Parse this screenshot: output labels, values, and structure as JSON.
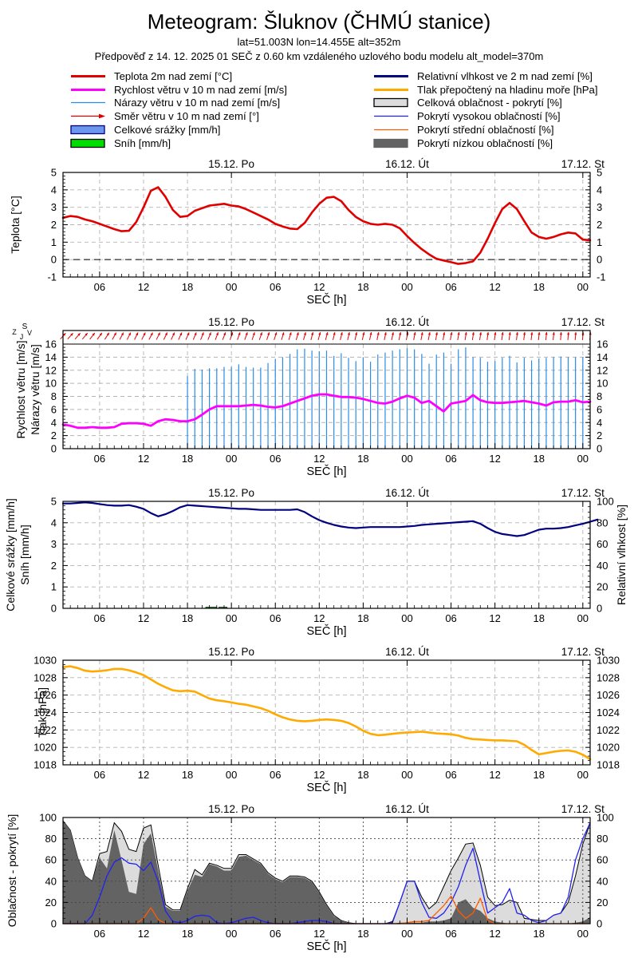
{
  "header": {
    "title": "Meteogram: Šluknov (ČHMÚ stanice)",
    "subtitle1": "lat=51.003N lon=14.455E alt=352m",
    "subtitle2": "Předpověď z 14. 12. 2025 01 SEČ z 0.60 km vzdáleného uzlového bodu modelu alt_model=370m"
  },
  "legend": {
    "left": [
      {
        "label": "Teplota 2m nad zemí [°C]",
        "swatch": "line",
        "color": "#e00000",
        "width": 3
      },
      {
        "label": "Rychlost větru v 10 m nad zemí [m/s]",
        "swatch": "line",
        "color": "#ff00ff",
        "width": 3
      },
      {
        "label": "Nárazy větru v 10 m nad zemí [m/s]",
        "swatch": "line",
        "color": "#2a8ce8",
        "width": 1.3
      },
      {
        "label": "Směr větru v 10 m nad zemí [°]",
        "swatch": "arrow",
        "color": "#e00000",
        "width": 1.3
      },
      {
        "label": "Celkové srážky [mm/h]",
        "swatch": "box",
        "color": "#6d96ee",
        "border": "#000080"
      },
      {
        "label": "Sníh [mm/h]",
        "swatch": "box",
        "color": "#00dd00",
        "border": "#000000"
      }
    ],
    "right": [
      {
        "label": "Relativní vlhkost ve 2 m nad zemí [%]",
        "swatch": "line",
        "color": "#000080",
        "width": 3
      },
      {
        "label": "Tlak přepočtený na hladinu moře [hPa]",
        "swatch": "line",
        "color": "#ffaa00",
        "width": 3
      },
      {
        "label": "Celková oblačnost - pokrytí [%]",
        "swatch": "box",
        "color": "#dcdcdc",
        "border": "#000000"
      },
      {
        "label": "Pokrytí vysokou oblačností [%]",
        "swatch": "line",
        "color": "#2222ee",
        "width": 1.3
      },
      {
        "label": "Pokrytí střední oblačností [%]",
        "swatch": "line",
        "color": "#ff5c00",
        "width": 1.3
      },
      {
        "label": "Pokrytí nízkou oblačností [%]",
        "swatch": "box",
        "color": "#636363",
        "border": "#636363"
      }
    ]
  },
  "axis": {
    "xlabel": "SEČ [h]",
    "hours_span": 72,
    "xticks": [
      {
        "h": 5,
        "label": "06"
      },
      {
        "h": 11,
        "label": "12"
      },
      {
        "h": 17,
        "label": "18"
      },
      {
        "h": 23,
        "label": "00"
      },
      {
        "h": 29,
        "label": "06"
      },
      {
        "h": 35,
        "label": "12"
      },
      {
        "h": 41,
        "label": "18"
      },
      {
        "h": 47,
        "label": "00"
      },
      {
        "h": 53,
        "label": "06"
      },
      {
        "h": 59,
        "label": "12"
      },
      {
        "h": 65,
        "label": "18"
      },
      {
        "h": 71,
        "label": "00"
      }
    ],
    "day_labels": [
      {
        "h": 23,
        "label": "15.12. Po"
      },
      {
        "h": 47,
        "label": "16.12. Út"
      },
      {
        "h": 71,
        "label": "17.12. St"
      }
    ],
    "day_boundaries": [
      23,
      47,
      71
    ],
    "compass": {
      "n": "S",
      "e": "V",
      "s": "J",
      "w": "Z"
    }
  },
  "chart_data": [
    {
      "id": "temperature",
      "type": "line",
      "ylabels": [
        "Teplota [°C]"
      ],
      "ylim": [
        -1,
        5
      ],
      "yticks": [
        -1,
        0,
        1,
        2,
        3,
        4,
        5
      ],
      "yminor": 0.2,
      "zero_line": true,
      "series": [
        {
          "name": "Teplota 2m nad zemí [°C]",
          "style": "line",
          "color": "#e00000",
          "width": 2.6,
          "values": [
            2.4,
            2.5,
            2.45,
            2.3,
            2.2,
            2.05,
            1.9,
            1.75,
            1.63,
            1.65,
            2.15,
            3.0,
            3.95,
            4.15,
            3.6,
            2.85,
            2.45,
            2.5,
            2.8,
            2.95,
            3.1,
            3.15,
            3.2,
            3.1,
            3.05,
            2.9,
            2.7,
            2.5,
            2.3,
            2.05,
            1.9,
            1.78,
            1.75,
            2.1,
            2.7,
            3.2,
            3.55,
            3.6,
            3.35,
            2.85,
            2.45,
            2.2,
            2.05,
            2.0,
            2.05,
            2.0,
            1.8,
            1.35,
            0.95,
            0.6,
            0.3,
            0.05,
            -0.05,
            -0.15,
            -0.25,
            -0.2,
            -0.1,
            0.4,
            1.2,
            2.1,
            2.9,
            3.25,
            2.9,
            2.2,
            1.55,
            1.3,
            1.2,
            1.3,
            1.45,
            1.55,
            1.5,
            1.15,
            1.1
          ]
        }
      ]
    },
    {
      "id": "wind",
      "type": "line",
      "ylabels": [
        "Rychlost větru [m/s]",
        "Nárazy větru [m/s]"
      ],
      "ylim": [
        0,
        16
      ],
      "yticks": [
        0,
        2,
        4,
        6,
        8,
        10,
        12,
        14,
        16
      ],
      "yminor": 0.5,
      "top_solid_line": 16,
      "wind_direction": {
        "name": "Směr větru v 10 m nad zemí [°]",
        "color": "#e00000",
        "deg_from_north": [
          42,
          42,
          41,
          40,
          38,
          36,
          33,
          30,
          28,
          27,
          26,
          27,
          28,
          27,
          26,
          25,
          25,
          24,
          23,
          22,
          22,
          21,
          21,
          20,
          20,
          20,
          19,
          19,
          18,
          18,
          17,
          17,
          16,
          16,
          15,
          15,
          15,
          14,
          14,
          14,
          13,
          13,
          13,
          12,
          12,
          12,
          12,
          12,
          11,
          11,
          11,
          10,
          10,
          10,
          10,
          9,
          9,
          9,
          8,
          8,
          8,
          8,
          7,
          7,
          7,
          6,
          6,
          6,
          5,
          5,
          5,
          5,
          5
        ]
      },
      "series": [
        {
          "name": "Nárazy větru v 10 m nad zemí [m/s]",
          "style": "impulses",
          "color": "#2a8ce8",
          "width": 1.2,
          "start_hour": 17,
          "values": [
            11.1,
            12.2,
            12.1,
            12.3,
            12.3,
            12.5,
            12.5,
            12.9,
            12.5,
            12.4,
            12.4,
            13.1,
            13.7,
            14.0,
            14.5,
            15.2,
            15.3,
            15.0,
            14.9,
            15.0,
            14.2,
            14.6,
            13.9,
            13.4,
            14.0,
            13.3,
            14.4,
            14.7,
            15.0,
            15.2,
            15.4,
            15.2,
            14.5,
            13.0,
            14.4,
            14.7,
            13.0,
            15.2,
            15.5,
            14.0,
            13.9,
            13.3,
            13.4,
            13.9,
            14.2,
            13.2,
            13.9,
            13.5,
            13.8,
            13.9,
            14.0,
            14.1,
            14.0,
            14.0,
            14.0
          ]
        },
        {
          "name": "Rychlost větru v 10 m nad zemí [m/s]",
          "style": "line",
          "color": "#ff00ff",
          "width": 2.8,
          "values": [
            3.7,
            3.5,
            3.2,
            3.2,
            3.3,
            3.2,
            3.2,
            3.3,
            3.8,
            3.9,
            3.9,
            3.8,
            3.5,
            4.2,
            4.5,
            4.4,
            4.2,
            4.2,
            4.5,
            5.2,
            6.0,
            6.5,
            6.5,
            6.5,
            6.5,
            6.6,
            6.7,
            6.6,
            6.4,
            6.3,
            6.5,
            6.9,
            7.3,
            7.7,
            8.1,
            8.3,
            8.3,
            8.1,
            7.9,
            7.9,
            7.8,
            7.6,
            7.3,
            7.0,
            6.9,
            7.2,
            7.7,
            8.1,
            7.8,
            7.0,
            7.3,
            6.5,
            5.7,
            6.9,
            7.1,
            7.3,
            8.2,
            7.4,
            7.1,
            7.0,
            7.0,
            7.1,
            7.2,
            7.3,
            7.1,
            6.9,
            6.6,
            7.1,
            7.2,
            7.2,
            7.4,
            7.1,
            7.2
          ]
        }
      ]
    },
    {
      "id": "precipitation_humidity",
      "type": "line",
      "ylabels": [
        "Celkové srážky [mm/h]",
        "Sníh [mm/h]"
      ],
      "ylim": [
        0,
        5
      ],
      "yticks": [
        0,
        1,
        2,
        3,
        4,
        5
      ],
      "yminor": 0.2,
      "right_axis": {
        "label": "Relativní vlhkost [%]",
        "ylim": [
          0,
          100
        ],
        "yticks": [
          0,
          20,
          40,
          60,
          80,
          100
        ],
        "yminor": 5
      },
      "series": [
        {
          "name": "Relativní vlhkost ve 2 m nad zemí [%]",
          "style": "line",
          "axis": "right",
          "color": "#000080",
          "width": 2.2,
          "values": [
            98,
            98,
            98.5,
            99,
            98.5,
            97.5,
            96.5,
            96,
            96,
            96.5,
            95,
            93,
            89,
            86,
            88,
            91,
            94.5,
            96.5,
            96,
            95.5,
            95,
            94.5,
            94,
            93.5,
            93,
            93,
            92.5,
            92,
            92,
            92,
            92,
            92,
            92.5,
            90,
            86,
            82.5,
            80,
            78,
            76.5,
            75.5,
            75,
            75.5,
            76,
            76,
            76,
            76,
            76,
            76.5,
            77,
            78,
            78.5,
            79,
            79.5,
            80,
            80.5,
            81,
            81.5,
            79,
            75,
            71.5,
            69.5,
            68.5,
            67.5,
            68.5,
            71,
            73.5,
            74.5,
            74.5,
            75,
            76,
            77.5,
            79,
            81,
            83
          ]
        },
        {
          "name": "Sníh [mm/h]",
          "style": "bars",
          "fill": "#00dd00",
          "stroke": "#000000",
          "bars": [
            {
              "h0": 19.5,
              "h1": 21.0,
              "value": 0.05
            },
            {
              "h0": 21.3,
              "h1": 22.4,
              "value": 0.05
            }
          ]
        }
      ]
    },
    {
      "id": "pressure",
      "type": "line",
      "ylabels": [
        "Tlak [hPa]"
      ],
      "ylim": [
        1018,
        1030
      ],
      "yticks": [
        1018,
        1020,
        1022,
        1024,
        1026,
        1028,
        1030
      ],
      "yminor": 0.5,
      "series": [
        {
          "name": "Tlak přepočtený na hladinu moře [hPa]",
          "style": "line",
          "color": "#ffaa00",
          "width": 2.6,
          "values": [
            1029.2,
            1029.3,
            1029.1,
            1028.8,
            1028.7,
            1028.75,
            1028.85,
            1029.0,
            1029.0,
            1028.85,
            1028.6,
            1028.3,
            1027.8,
            1027.3,
            1026.9,
            1026.55,
            1026.45,
            1026.5,
            1026.4,
            1026.0,
            1025.6,
            1025.4,
            1025.3,
            1025.15,
            1025.0,
            1024.9,
            1024.7,
            1024.5,
            1024.2,
            1023.8,
            1023.45,
            1023.2,
            1023.05,
            1023.0,
            1023.05,
            1023.15,
            1023.2,
            1023.15,
            1023.05,
            1022.8,
            1022.4,
            1021.9,
            1021.55,
            1021.4,
            1021.45,
            1021.55,
            1021.65,
            1021.7,
            1021.75,
            1021.8,
            1021.7,
            1021.6,
            1021.55,
            1021.5,
            1021.35,
            1021.1,
            1020.95,
            1020.9,
            1020.85,
            1020.8,
            1020.8,
            1020.75,
            1020.7,
            1020.3,
            1019.7,
            1019.2,
            1019.35,
            1019.5,
            1019.6,
            1019.65,
            1019.5,
            1019.15,
            1018.65
          ]
        }
      ]
    },
    {
      "id": "cloud_cover",
      "type": "area",
      "ylabels": [
        "Oblačnost - pokrytí [%]"
      ],
      "ylim": [
        0,
        100
      ],
      "yticks": [
        0,
        20,
        40,
        60,
        80,
        100
      ],
      "yminor": 5,
      "grid_front": true,
      "series": [
        {
          "name": "Celková oblačnost - pokrytí [%]",
          "style": "area",
          "fill": "#dcdcdc",
          "stroke": "#000000",
          "values": [
            97,
            88,
            62,
            45,
            40,
            66,
            68,
            95,
            87,
            70,
            68,
            90,
            93,
            55,
            18,
            13,
            13,
            33,
            51,
            46,
            57,
            55,
            52,
            52,
            65,
            65,
            61,
            57,
            48,
            43,
            40,
            45,
            45,
            44,
            40,
            30,
            18,
            8,
            3,
            1,
            0,
            0,
            0,
            0,
            0,
            2,
            20,
            40,
            40,
            25,
            14,
            20,
            35,
            50,
            62,
            75,
            76,
            55,
            25,
            17,
            18,
            22,
            20,
            5,
            4,
            3,
            3,
            8,
            10,
            20,
            45,
            75,
            95
          ]
        },
        {
          "name": "Pokrytí nízkou oblačností [%]",
          "style": "area",
          "fill": "#636363",
          "values": [
            97,
            88,
            62,
            45,
            40,
            62,
            52,
            88,
            60,
            30,
            28,
            75,
            85,
            50,
            16,
            12,
            12,
            31,
            46,
            44,
            56,
            54,
            50,
            50,
            63,
            64,
            60,
            56,
            47,
            42,
            39,
            44,
            44,
            43,
            39,
            29,
            17,
            7,
            3,
            1,
            0,
            0,
            0,
            0,
            0,
            0,
            1,
            1,
            1,
            1,
            2,
            2,
            3,
            5,
            20,
            23,
            15,
            12,
            5,
            2,
            1,
            0,
            0,
            0,
            0,
            0,
            0,
            0,
            0,
            0,
            1,
            2,
            6
          ]
        },
        {
          "name": "Pokrytí vysokou oblačností [%]",
          "style": "line",
          "color": "#2222ee",
          "width": 1.3,
          "values": [
            0,
            0,
            0,
            0,
            8,
            25,
            45,
            58,
            62,
            57,
            56,
            50,
            58,
            40,
            12,
            2,
            1,
            3,
            7,
            8,
            7,
            1,
            0,
            1,
            3,
            5,
            6,
            3,
            1,
            0,
            0,
            0,
            1,
            2,
            3,
            3,
            2,
            0,
            0,
            0,
            0,
            0,
            0,
            0,
            0,
            1,
            20,
            40,
            40,
            20,
            6,
            5,
            10,
            20,
            35,
            55,
            71,
            40,
            10,
            15,
            20,
            33,
            10,
            8,
            3,
            1,
            3,
            8,
            10,
            25,
            60,
            80,
            95
          ]
        },
        {
          "name": "Pokrytí střední oblačností [%]",
          "style": "line",
          "color": "#ff5c00",
          "width": 1.3,
          "values": [
            0,
            0,
            0,
            0,
            0,
            0,
            0,
            0,
            0,
            0,
            0,
            5,
            15,
            4,
            0,
            0,
            0,
            0,
            0,
            0,
            0,
            0,
            0,
            0,
            0,
            0,
            0,
            0,
            0,
            0,
            0,
            0,
            0,
            0,
            0,
            0,
            0,
            0,
            0,
            0,
            0,
            0,
            0,
            0,
            0,
            0,
            0,
            1,
            2,
            2,
            3,
            10,
            17,
            26,
            12,
            5,
            10,
            24,
            3,
            0,
            0,
            0,
            0,
            0,
            0,
            0,
            0,
            0,
            0,
            0,
            0,
            0,
            0
          ]
        }
      ]
    }
  ]
}
